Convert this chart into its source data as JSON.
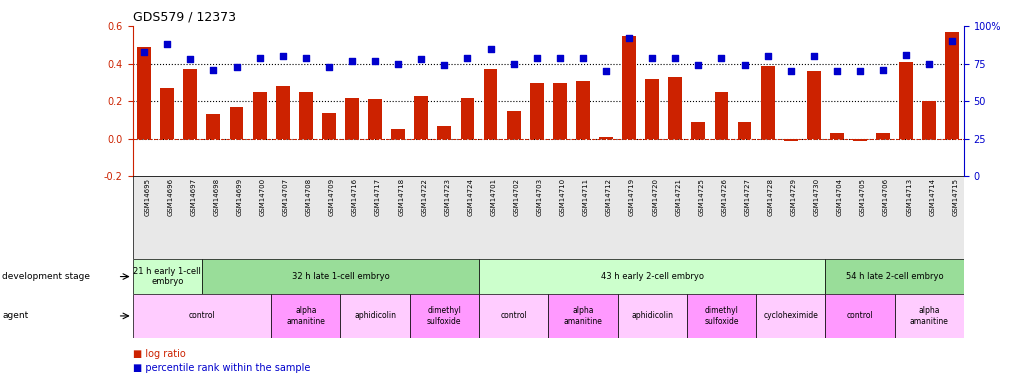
{
  "title": "GDS579 / 12373",
  "sample_ids": [
    "GSM14695",
    "GSM14696",
    "GSM14697",
    "GSM14698",
    "GSM14699",
    "GSM14700",
    "GSM14707",
    "GSM14708",
    "GSM14709",
    "GSM14716",
    "GSM14717",
    "GSM14718",
    "GSM14722",
    "GSM14723",
    "GSM14724",
    "GSM14701",
    "GSM14702",
    "GSM14703",
    "GSM14710",
    "GSM14711",
    "GSM14712",
    "GSM14719",
    "GSM14720",
    "GSM14721",
    "GSM14725",
    "GSM14726",
    "GSM14727",
    "GSM14728",
    "GSM14729",
    "GSM14730",
    "GSM14704",
    "GSM14705",
    "GSM14706",
    "GSM14713",
    "GSM14714",
    "GSM14715"
  ],
  "log_ratio": [
    0.49,
    0.27,
    0.37,
    0.13,
    0.17,
    0.25,
    0.28,
    0.25,
    0.14,
    0.22,
    0.21,
    0.05,
    0.23,
    0.07,
    0.22,
    0.37,
    0.15,
    0.3,
    0.3,
    0.31,
    0.01,
    0.55,
    0.32,
    0.33,
    0.09,
    0.25,
    0.09,
    0.39,
    -0.01,
    0.36,
    0.03,
    -0.01,
    0.03,
    0.41,
    0.2,
    0.57
  ],
  "percentile_rank": [
    83,
    88,
    78,
    71,
    73,
    79,
    80,
    79,
    73,
    77,
    77,
    75,
    78,
    74,
    79,
    85,
    75,
    79,
    79,
    79,
    70,
    92,
    79,
    79,
    74,
    79,
    74,
    80,
    70,
    80,
    70,
    70,
    71,
    81,
    75,
    90
  ],
  "development_stages": [
    {
      "label": "21 h early 1-cell\nembryo",
      "start": 0,
      "end": 3
    },
    {
      "label": "32 h late 1-cell embryo",
      "start": 3,
      "end": 15
    },
    {
      "label": "43 h early 2-cell embryo",
      "start": 15,
      "end": 30
    },
    {
      "label": "54 h late 2-cell embryo",
      "start": 30,
      "end": 36
    }
  ],
  "dev_stage_colors": [
    "#ccffcc",
    "#99dd99",
    "#ccffcc",
    "#99dd99"
  ],
  "agents": [
    {
      "label": "control",
      "start": 0,
      "end": 6
    },
    {
      "label": "alpha\namanitine",
      "start": 6,
      "end": 9
    },
    {
      "label": "aphidicolin",
      "start": 9,
      "end": 12
    },
    {
      "label": "dimethyl\nsulfoxide",
      "start": 12,
      "end": 15
    },
    {
      "label": "control",
      "start": 15,
      "end": 18
    },
    {
      "label": "alpha\namanitine",
      "start": 18,
      "end": 21
    },
    {
      "label": "aphidicolin",
      "start": 21,
      "end": 24
    },
    {
      "label": "dimethyl\nsulfoxide",
      "start": 24,
      "end": 27
    },
    {
      "label": "cycloheximide",
      "start": 27,
      "end": 30
    },
    {
      "label": "control",
      "start": 30,
      "end": 33
    },
    {
      "label": "alpha\namanitine",
      "start": 33,
      "end": 36
    }
  ],
  "agent_colors": [
    "#ffccff",
    "#ff99ff",
    "#ffccff",
    "#ff99ff",
    "#ffccff",
    "#ff99ff",
    "#ffccff",
    "#ff99ff",
    "#ffccff",
    "#ff99ff",
    "#ffccff"
  ],
  "bar_color": "#cc2200",
  "dot_color": "#0000cc",
  "ylim_left": [
    -0.2,
    0.6
  ],
  "ylim_right": [
    0,
    100
  ],
  "yticks_left": [
    -0.2,
    0.0,
    0.2,
    0.4,
    0.6
  ],
  "yticks_right": [
    0,
    25,
    50,
    75,
    100
  ],
  "hlines": [
    0.0,
    0.2,
    0.4
  ],
  "background_color": "#ffffff"
}
